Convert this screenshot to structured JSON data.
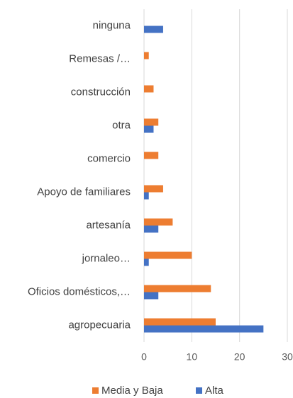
{
  "chart_data": {
    "type": "hbar",
    "categories": [
      "ninguna",
      "Remesas /…",
      "construcción",
      "otra",
      "comercio",
      "Apoyo de familiares",
      "artesanía",
      "jornaleo…",
      "Oficios domésticos,…",
      "agropecuaria"
    ],
    "series": [
      {
        "name": "Media y Baja",
        "color": "#ed7d31",
        "values": [
          0,
          1,
          2,
          3,
          3,
          4,
          6,
          10,
          14,
          15
        ]
      },
      {
        "name": "Alta",
        "color": "#4472c4",
        "values": [
          4,
          0,
          0,
          2,
          0,
          1,
          3,
          1,
          3,
          25
        ]
      }
    ],
    "xlim": [
      0,
      30
    ],
    "xticks": [
      0,
      10,
      20,
      30
    ],
    "grid": true,
    "legend": "bottom"
  }
}
